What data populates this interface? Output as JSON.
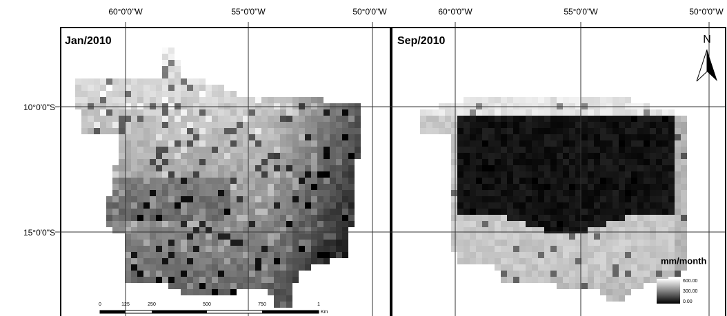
{
  "panels": [
    {
      "title": "Jan/2010",
      "lon_labels": [
        "60°0'0\"W",
        "55°0'0\"W",
        "50°0'0\"W"
      ]
    },
    {
      "title": "Sep/2010",
      "lon_labels": [
        "60°0'0\"W",
        "55°0'0\"W",
        "50°0'0\"W"
      ]
    }
  ],
  "lat_labels": [
    "10°0'0\"S",
    "15°0'0\"S"
  ],
  "north": "N",
  "legend": {
    "title": "mm/month",
    "labels": [
      "600.00",
      "300.00",
      "0.00"
    ]
  },
  "scale_bar": {
    "labels": [
      "0",
      "125",
      "250",
      "500",
      "750",
      "1"
    ],
    "unit": "Km"
  }
}
